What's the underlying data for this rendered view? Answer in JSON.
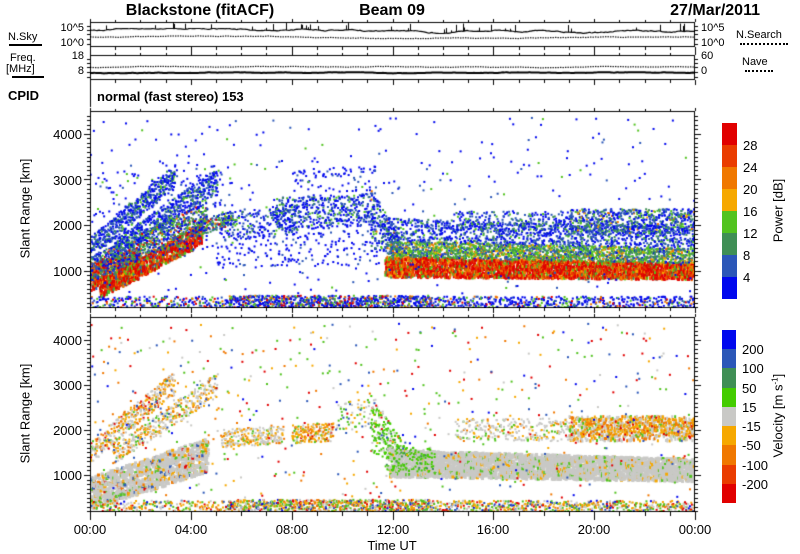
{
  "header": {
    "station": "Blackstone (fitACF)",
    "beam": "Beam 09",
    "date": "27/Mar/2011"
  },
  "noise_panel": {
    "left_label": "N.Sky",
    "right_label": "N.Search",
    "tick_top": "10^5",
    "tick_bottom": "10^0"
  },
  "freq_panel": {
    "label1": "Freq.",
    "label2": "[MHz]",
    "tick_top": "18",
    "tick_bottom": "8",
    "right_tick_top": "60",
    "right_tick_bottom": "0",
    "right_label": "Nave"
  },
  "cpid": {
    "label": "CPID",
    "value": "normal (fast stereo) 153"
  },
  "time_axis": {
    "labels": [
      "00:00",
      "04:00",
      "08:00",
      "12:00",
      "16:00",
      "20:00",
      "00:00"
    ],
    "title": "Time UT"
  },
  "range_axis": {
    "label": "Slant Range [km]",
    "ticks": [
      "4000",
      "3000",
      "2000",
      "1000"
    ]
  },
  "power_colorbar": {
    "title": "Power [dB]",
    "labels": [
      "28",
      "24",
      "20",
      "16",
      "12",
      "8",
      "4"
    ],
    "colors_top_to_bottom": [
      "#e10000",
      "#ea3c00",
      "#f07800",
      "#f6a800",
      "#52c31f",
      "#3f8f55",
      "#2b57b8",
      "#0008ee"
    ]
  },
  "velocity_colorbar": {
    "title_main": "Velocity [m s",
    "title_sup": "-1",
    "title_end": "]",
    "labels": [
      "200",
      "100",
      "50",
      "15",
      "-15",
      "-50",
      "-100",
      "-200"
    ],
    "colors_top_to_bottom": [
      "#0008ee",
      "#2b57b8",
      "#3f8f55",
      "#44cc00",
      "#c9c9c6",
      "#f6a800",
      "#f07800",
      "#ea3c00",
      "#e10000"
    ]
  },
  "chart_data": {
    "type": "heatmap",
    "title": "Blackstone (fitACF) SuperDARN range-time plot, Beam 09, 27/Mar/2011",
    "time_range_hours": [
      0,
      24
    ],
    "slant_range_km": [
      180,
      4500
    ],
    "palette": {
      "R": "#e10000",
      "RO": "#ea3c00",
      "O": "#f07800",
      "A": "#f6a800",
      "G": "#52c31f",
      "LG": "#44cc00",
      "T": "#3f8f55",
      "B": "#2b57b8",
      "D": "#0008ee",
      "Y": "#c9c9c6"
    },
    "panels": {
      "sky_noise": {
        "type": "line",
        "scale": "log",
        "ylim_labels": [
          "10^0",
          "10^5"
        ],
        "series": [
          {
            "name": "N.Sky",
            "style": "solid",
            "base_frac": 0.38,
            "spikes": 40
          },
          {
            "name": "N.Search",
            "style": "dotted",
            "base_frac": 0.58
          }
        ]
      },
      "frequency": {
        "type": "line",
        "ylim": [
          8,
          18
        ],
        "series": [
          {
            "name": "Nave",
            "style": "dotted",
            "base_frac": 0.48
          },
          {
            "name": "Frequency",
            "style": "solid",
            "value_mhz": 10.8,
            "base_frac": 0.72
          }
        ]
      },
      "power": {
        "units": "dB",
        "color_bounds": [
          4,
          8,
          12,
          16,
          20,
          24,
          28
        ],
        "features": [
          {
            "t": [
              0,
              1.9
            ],
            "ra": [
              550,
              1150
            ],
            "rb": [
              800,
              1500
            ],
            "d": 14,
            "s": [
              2,
              3
            ],
            "c": {
              "R": 50,
              "RO": 18,
              "O": 12,
              "G": 10,
              "T": 5,
              "B": 5
            }
          },
          {
            "t": [
              0.4,
              4.4
            ],
            "ra": [
              400,
              750
            ],
            "rb": [
              1550,
              2050
            ],
            "d": 12,
            "s": [
              2,
              3
            ],
            "c": {
              "R": 42,
              "RO": 18,
              "O": 12,
              "A": 4,
              "G": 12,
              "T": 6,
              "B": 6
            }
          },
          {
            "t": [
              4.2,
              5.6
            ],
            "ra": [
              1750,
              2100
            ],
            "rb": [
              2000,
              2300
            ],
            "d": 5,
            "c": {
              "B": 35,
              "T": 20,
              "G": 20,
              "O": 10,
              "R": 15
            }
          },
          {
            "t": [
              0,
              3.3
            ],
            "ra": [
              1250,
              1750
            ],
            "rb": [
              2800,
              3300
            ],
            "d": 8,
            "c": {
              "D": 55,
              "B": 28,
              "T": 9,
              "G": 8
            }
          },
          {
            "t": [
              0.9,
              5.0
            ],
            "ra": [
              1250,
              1650
            ],
            "rb": [
              2700,
              3250
            ],
            "d": 7,
            "c": {
              "D": 50,
              "B": 30,
              "T": 10,
              "G": 10
            }
          },
          {
            "t": [
              0,
              4.6
            ],
            "ra": [
              750,
              1300
            ],
            "rb": [
              1900,
              2500
            ],
            "d": 9,
            "c": {
              "D": 28,
              "B": 26,
              "T": 18,
              "G": 16,
              "O": 6,
              "R": 6
            }
          },
          {
            "t": [
              0,
              5.6
            ],
            "ra": [
              900,
              3300
            ],
            "rb": [
              1500,
              3400
            ],
            "d": 1.6,
            "c": {
              "D": 70,
              "B": 20,
              "G": 10
            }
          },
          {
            "t": [
              5.2,
              8.1
            ],
            "ra": [
              1650,
              2300
            ],
            "rb": [
              1800,
              2450
            ],
            "d": 3.5,
            "c": {
              "D": 55,
              "B": 30,
              "G": 8,
              "T": 7
            }
          },
          {
            "t": [
              7.3,
              11.25
            ],
            "ra": [
              1850,
              2600
            ],
            "rb": [
              2000,
              2700
            ],
            "d": 6,
            "c": {
              "D": 52,
              "B": 30,
              "T": 10,
              "G": 8
            }
          },
          {
            "t": [
              8,
              11.3
            ],
            "ra": [
              2700,
              3250
            ],
            "rb": [
              2750,
              3300
            ],
            "d": 1.2,
            "c": {
              "D": 85,
              "B": 15
            }
          },
          {
            "t": [
              5,
              11.4
            ],
            "ra": [
              1050,
              1850
            ],
            "rb": [
              1100,
              1900
            ],
            "d": 1.5,
            "c": {
              "D": 75,
              "B": 25
            }
          },
          {
            "t": [
              11.15,
              12.3
            ],
            "ra": [
              1500,
              2750
            ],
            "rb": [
              1200,
              1800
            ],
            "d": 10,
            "c": {
              "D": 45,
              "B": 27,
              "T": 14,
              "G": 10,
              "O": 4
            }
          },
          {
            "t": [
              11.7,
              24
            ],
            "ra": [
              850,
              1300
            ],
            "rb": [
              800,
              1150
            ],
            "d": 14,
            "s": [
              2,
              3
            ],
            "c": {
              "R": 46,
              "RO": 20,
              "O": 16,
              "A": 6,
              "G": 8,
              "T": 4
            }
          },
          {
            "t": [
              11.9,
              24
            ],
            "ra": [
              1300,
              1650
            ],
            "rb": [
              1150,
              1480
            ],
            "d": 8,
            "c": {
              "G": 34,
              "T": 26,
              "B": 16,
              "D": 8,
              "A": 10,
              "O": 6
            }
          },
          {
            "t": [
              11.7,
              24
            ],
            "ra": [
              1650,
              2150
            ],
            "rb": [
              1480,
              1950
            ],
            "d": 4.5,
            "c": {
              "D": 50,
              "B": 34,
              "T": 9,
              "G": 7
            }
          },
          {
            "t": [
              14.5,
              19
            ],
            "ra": [
              1850,
              2300
            ],
            "rb": [
              1850,
              2300
            ],
            "d": 2.5,
            "c": {
              "D": 48,
              "B": 30,
              "T": 12,
              "G": 10
            }
          },
          {
            "t": [
              19,
              24
            ],
            "ra": [
              1800,
              2350
            ],
            "rb": [
              1800,
              2350
            ],
            "d": 7,
            "c": {
              "D": 40,
              "B": 28,
              "T": 15,
              "G": 12,
              "A": 3,
              "O": 2
            }
          },
          {
            "t": [
              0,
              5.5
            ],
            "ra": [
              190,
              430
            ],
            "rb": [
              190,
              430
            ],
            "d": 2,
            "c": {
              "D": 55,
              "B": 15,
              "G": 15,
              "O": 8,
              "R": 7
            }
          },
          {
            "t": [
              5.5,
              13.5
            ],
            "ra": [
              190,
              450
            ],
            "rb": [
              190,
              450
            ],
            "d": 5,
            "c": {
              "D": 50,
              "B": 15,
              "G": 18,
              "O": 9,
              "R": 8
            }
          },
          {
            "t": [
              13.5,
              24
            ],
            "ra": [
              190,
              430
            ],
            "rb": [
              190,
              430
            ],
            "d": 2.5,
            "c": {
              "D": 55,
              "B": 15,
              "G": 15,
              "O": 8,
              "R": 7
            }
          },
          {
            "t": [
              0,
              24
            ],
            "ra": [
              500,
              4350
            ],
            "rb": [
              500,
              4350
            ],
            "d": 0.7,
            "c": {
              "D": 75,
              "B": 15,
              "G": 10
            }
          }
        ]
      },
      "velocity": {
        "units": "m/s",
        "color_bounds": [
          -200,
          -100,
          -50,
          -15,
          15,
          50,
          100,
          200
        ],
        "features": [
          {
            "t": [
              0,
              4.6
            ],
            "ra": [
              230,
              950
            ],
            "rb": [
              1050,
              1800
            ],
            "d": 13,
            "s": [
              3,
              3
            ],
            "c": {
              "Y": 78,
              "A": 8,
              "O": 5,
              "G": 5,
              "R": 2,
              "B": 2
            }
          },
          {
            "t": [
              0,
              3.3
            ],
            "ra": [
              1250,
              1750
            ],
            "rb": [
              2800,
              3300
            ],
            "d": 6,
            "c": {
              "Y": 40,
              "A": 28,
              "O": 18,
              "R": 5,
              "G": 5,
              "B": 4
            }
          },
          {
            "t": [
              0.9,
              5.0
            ],
            "ra": [
              1250,
              1650
            ],
            "rb": [
              2700,
              3250
            ],
            "d": 5,
            "c": {
              "Y": 45,
              "A": 25,
              "O": 15,
              "G": 10,
              "B": 5
            }
          },
          {
            "t": [
              5.2,
              7.6
            ],
            "ra": [
              1600,
              2000
            ],
            "rb": [
              1700,
              2100
            ],
            "d": 5,
            "c": {
              "Y": 50,
              "A": 28,
              "O": 12,
              "G": 10
            }
          },
          {
            "t": [
              8.0,
              9.6
            ],
            "ra": [
              1700,
              2100
            ],
            "rb": [
              1750,
              2150
            ],
            "d": 6,
            "c": {
              "A": 40,
              "O": 22,
              "Y": 24,
              "G": 10,
              "R": 4
            }
          },
          {
            "t": [
              9.8,
              11.25
            ],
            "ra": [
              1900,
              2600
            ],
            "rb": [
              2000,
              2700
            ],
            "d": 2.5,
            "c": {
              "Y": 40,
              "G": 25,
              "A": 20,
              "B": 10,
              "R": 5
            }
          },
          {
            "t": [
              11.15,
              12.3
            ],
            "ra": [
              1500,
              2750
            ],
            "rb": [
              1200,
              1800
            ],
            "d": 9,
            "c": {
              "LG": 55,
              "Y": 25,
              "T": 8,
              "A": 7,
              "R": 5
            }
          },
          {
            "t": [
              11.9,
              24
            ],
            "ra": [
              950,
              1550
            ],
            "rb": [
              850,
              1350
            ],
            "d": 15,
            "s": [
              3,
              3
            ],
            "c": {
              "Y": 90,
              "G": 5,
              "A": 5
            }
          },
          {
            "t": [
              11.7,
              13.6
            ],
            "ra": [
              1100,
              1750
            ],
            "rb": [
              1050,
              1600
            ],
            "d": 5,
            "c": {
              "LG": 60,
              "Y": 28,
              "T": 12
            }
          },
          {
            "t": [
              14.5,
              19
            ],
            "ra": [
              1750,
              2250
            ],
            "rb": [
              1750,
              2250
            ],
            "d": 3,
            "c": {
              "Y": 65,
              "G": 12,
              "A": 15,
              "O": 8
            }
          },
          {
            "t": [
              19,
              24
            ],
            "ra": [
              1750,
              2300
            ],
            "rb": [
              1750,
              2300
            ],
            "d": 7,
            "s": [
              2,
              3
            ],
            "c": {
              "Y": 55,
              "A": 22,
              "O": 12,
              "G": 9,
              "R": 2
            }
          },
          {
            "t": [
              19.5,
              23.9
            ],
            "ra": [
              1850,
              2250
            ],
            "rb": [
              1850,
              2250
            ],
            "d": 3,
            "c": {
              "A": 55,
              "O": 30,
              "R": 8,
              "Y": 7
            }
          },
          {
            "t": [
              0,
              5.5
            ],
            "ra": [
              190,
              430
            ],
            "rb": [
              190,
              430
            ],
            "d": 2,
            "c": {
              "Y": 20,
              "G": 25,
              "A": 22,
              "O": 10,
              "R": 10,
              "B": 8,
              "D": 5
            }
          },
          {
            "t": [
              5.5,
              13.5
            ],
            "ra": [
              190,
              450
            ],
            "rb": [
              190,
              450
            ],
            "d": 5,
            "c": {
              "Y": 20,
              "G": 25,
              "A": 22,
              "O": 10,
              "R": 10,
              "B": 8,
              "D": 5
            }
          },
          {
            "t": [
              13.5,
              24
            ],
            "ra": [
              190,
              430
            ],
            "rb": [
              190,
              430
            ],
            "d": 2.8,
            "c": {
              "Y": 20,
              "G": 25,
              "A": 22,
              "O": 10,
              "R": 10,
              "B": 8,
              "D": 5
            }
          },
          {
            "t": [
              0,
              24
            ],
            "ra": [
              500,
              4350
            ],
            "rb": [
              500,
              4350
            ],
            "d": 1.1,
            "c": {
              "R": 16,
              "O": 14,
              "A": 14,
              "G": 22,
              "B": 14,
              "D": 10,
              "Y": 10
            }
          }
        ]
      }
    }
  }
}
